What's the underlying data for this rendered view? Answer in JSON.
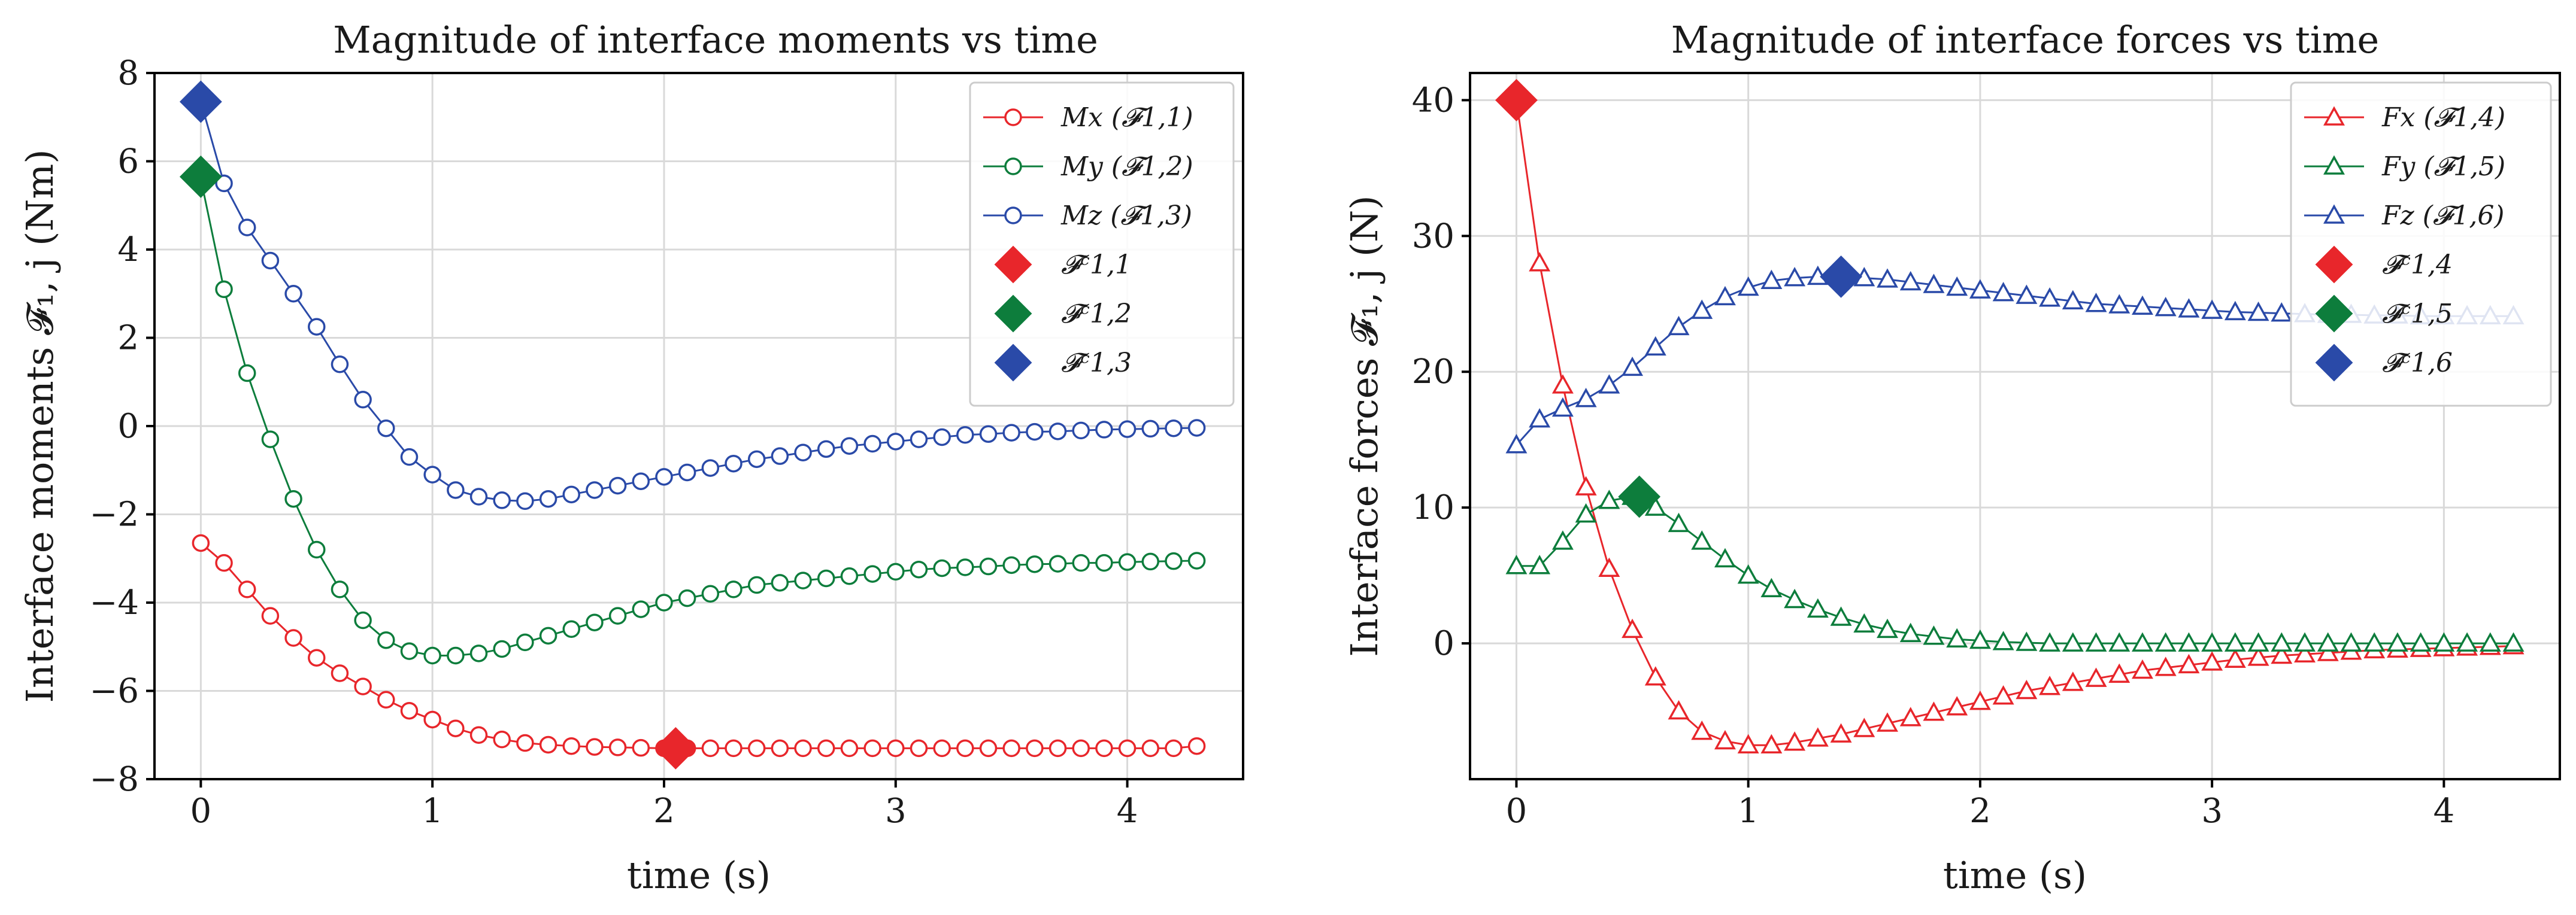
{
  "chart_data": [
    {
      "type": "line",
      "title": "Magnitude of interface moments vs time",
      "xlabel": "time (s)",
      "ylabel": "Interface moments 𝓕₁, j (Nm)",
      "xlim": [
        -0.2,
        4.5
      ],
      "ylim": [
        -8,
        8
      ],
      "xticks": [
        0,
        1,
        2,
        3,
        4
      ],
      "yticks": [
        -8,
        -6,
        -4,
        -2,
        0,
        2,
        4,
        6,
        8
      ],
      "xtick_labels": [
        "0",
        "1",
        "2",
        "3",
        "4"
      ],
      "ytick_labels": [
        "−8",
        "−6",
        "−4",
        "−2",
        "0",
        "2",
        "4",
        "6",
        "8"
      ],
      "grid": true,
      "legend_position": "top-right",
      "marker": "circle",
      "x": [
        0,
        0.1,
        0.2,
        0.3,
        0.4,
        0.5,
        0.6,
        0.7,
        0.8,
        0.9,
        1.0,
        1.1,
        1.2,
        1.3,
        1.4,
        1.5,
        1.6,
        1.7,
        1.8,
        1.9,
        2.0,
        2.1,
        2.2,
        2.3,
        2.4,
        2.5,
        2.6,
        2.7,
        2.8,
        2.9,
        3.0,
        3.1,
        3.2,
        3.3,
        3.4,
        3.5,
        3.6,
        3.7,
        3.8,
        3.9,
        4.0,
        4.1,
        4.2,
        4.3
      ],
      "series": [
        {
          "name": "Mx (𝓕1,1)",
          "color": "#e8262b",
          "values": [
            -2.65,
            -3.1,
            -3.7,
            -4.3,
            -4.8,
            -5.25,
            -5.6,
            -5.9,
            -6.2,
            -6.45,
            -6.65,
            -6.85,
            -7.0,
            -7.1,
            -7.18,
            -7.22,
            -7.25,
            -7.27,
            -7.28,
            -7.29,
            -7.3,
            -7.3,
            -7.3,
            -7.3,
            -7.3,
            -7.3,
            -7.3,
            -7.3,
            -7.3,
            -7.3,
            -7.3,
            -7.3,
            -7.3,
            -7.3,
            -7.3,
            -7.3,
            -7.3,
            -7.3,
            -7.3,
            -7.3,
            -7.3,
            -7.3,
            -7.3,
            -7.25
          ]
        },
        {
          "name": "My (𝓕1,2)",
          "color": "#0d7d3c",
          "values": [
            5.6,
            3.1,
            1.2,
            -0.3,
            -1.65,
            -2.8,
            -3.7,
            -4.4,
            -4.85,
            -5.1,
            -5.2,
            -5.2,
            -5.15,
            -5.05,
            -4.9,
            -4.75,
            -4.6,
            -4.45,
            -4.3,
            -4.15,
            -4.0,
            -3.9,
            -3.8,
            -3.7,
            -3.6,
            -3.55,
            -3.5,
            -3.45,
            -3.4,
            -3.35,
            -3.3,
            -3.25,
            -3.22,
            -3.2,
            -3.18,
            -3.15,
            -3.13,
            -3.12,
            -3.1,
            -3.1,
            -3.08,
            -3.07,
            -3.06,
            -3.05
          ]
        },
        {
          "name": "Mz (𝓕1,3)",
          "color": "#2a4aa8",
          "values": [
            7.35,
            5.5,
            4.5,
            3.75,
            3.0,
            2.25,
            1.4,
            0.6,
            -0.05,
            -0.7,
            -1.1,
            -1.45,
            -1.6,
            -1.68,
            -1.7,
            -1.65,
            -1.55,
            -1.45,
            -1.35,
            -1.25,
            -1.15,
            -1.05,
            -0.95,
            -0.85,
            -0.75,
            -0.68,
            -0.6,
            -0.52,
            -0.45,
            -0.4,
            -0.35,
            -0.3,
            -0.25,
            -0.2,
            -0.18,
            -0.15,
            -0.13,
            -0.12,
            -0.1,
            -0.08,
            -0.07,
            -0.06,
            -0.05,
            -0.04
          ]
        }
      ],
      "highlights": [
        {
          "name": "𝓕ᶜ1,1",
          "color": "#e8262b",
          "x": 2.05,
          "y": -7.3
        },
        {
          "name": "𝓕ᶜ1,2",
          "color": "#0d7d3c",
          "x": 0.0,
          "y": 5.65
        },
        {
          "name": "𝓕ᶜ1,3",
          "color": "#2a4aa8",
          "x": 0.0,
          "y": 7.35
        }
      ],
      "legend_series": [
        "M",
        "x",
        "𝓕",
        "1,1"
      ]
    },
    {
      "type": "line",
      "title": "Magnitude of interface forces vs time",
      "xlabel": "time (s)",
      "ylabel": "Interface forces 𝓕₁, j (N)",
      "xlim": [
        -0.2,
        4.5
      ],
      "ylim": [
        -10,
        42
      ],
      "xticks": [
        0,
        1,
        2,
        3,
        4
      ],
      "yticks": [
        0,
        10,
        20,
        30,
        40
      ],
      "xtick_labels": [
        "0",
        "1",
        "2",
        "3",
        "4"
      ],
      "ytick_labels": [
        "0",
        "10",
        "20",
        "30",
        "40"
      ],
      "grid": true,
      "legend_position": "top-right",
      "marker": "triangle",
      "x": [
        0,
        0.1,
        0.2,
        0.3,
        0.4,
        0.5,
        0.6,
        0.7,
        0.8,
        0.9,
        1.0,
        1.1,
        1.2,
        1.3,
        1.4,
        1.5,
        1.6,
        1.7,
        1.8,
        1.9,
        2.0,
        2.1,
        2.2,
        2.3,
        2.4,
        2.5,
        2.6,
        2.7,
        2.8,
        2.9,
        3.0,
        3.1,
        3.2,
        3.3,
        3.4,
        3.5,
        3.6,
        3.7,
        3.8,
        3.9,
        4.0,
        4.1,
        4.2,
        4.3
      ],
      "series": [
        {
          "name": "Fx (𝓕1,4)",
          "color": "#e8262b",
          "values": [
            40.0,
            28.0,
            19.0,
            11.5,
            5.5,
            1.0,
            -2.5,
            -5.0,
            -6.5,
            -7.2,
            -7.5,
            -7.5,
            -7.3,
            -7.0,
            -6.7,
            -6.3,
            -5.9,
            -5.5,
            -5.1,
            -4.7,
            -4.3,
            -3.9,
            -3.5,
            -3.2,
            -2.9,
            -2.6,
            -2.3,
            -2.0,
            -1.8,
            -1.6,
            -1.4,
            -1.2,
            -1.05,
            -0.9,
            -0.8,
            -0.7,
            -0.6,
            -0.5,
            -0.45,
            -0.4,
            -0.35,
            -0.3,
            -0.25,
            -0.2
          ]
        },
        {
          "name": "Fy (𝓕1,5)",
          "color": "#0d7d3c",
          "values": [
            5.7,
            5.7,
            7.5,
            9.5,
            10.5,
            10.8,
            10.0,
            8.8,
            7.5,
            6.2,
            5.0,
            4.0,
            3.2,
            2.5,
            1.9,
            1.4,
            1.0,
            0.7,
            0.5,
            0.3,
            0.2,
            0.1,
            0.05,
            0.0,
            0.0,
            0.0,
            0.0,
            0.0,
            0.0,
            0.0,
            0.0,
            0.0,
            0.0,
            0.0,
            0.0,
            0.0,
            0.0,
            0.0,
            0.0,
            0.0,
            0.0,
            0.0,
            0.0,
            0.0
          ]
        },
        {
          "name": "Fz (𝓕1,6)",
          "color": "#2a4aa8",
          "values": [
            14.6,
            16.5,
            17.3,
            18.0,
            19.0,
            20.3,
            21.8,
            23.3,
            24.5,
            25.5,
            26.2,
            26.7,
            26.9,
            27.0,
            27.0,
            26.9,
            26.8,
            26.6,
            26.4,
            26.2,
            26.0,
            25.8,
            25.6,
            25.4,
            25.2,
            25.0,
            24.9,
            24.8,
            24.7,
            24.6,
            24.5,
            24.4,
            24.35,
            24.3,
            24.25,
            24.2,
            24.2,
            24.15,
            24.15,
            24.1,
            24.1,
            24.1,
            24.1,
            24.1
          ]
        }
      ],
      "highlights": [
        {
          "name": "𝓕ᶜ1,4",
          "color": "#e8262b",
          "x": 0.0,
          "y": 40.0
        },
        {
          "name": "𝓕ᶜ1,5",
          "color": "#0d7d3c",
          "x": 0.53,
          "y": 10.8
        },
        {
          "name": "𝓕ᶜ1,6",
          "color": "#2a4aa8",
          "x": 1.4,
          "y": 27.0
        }
      ]
    }
  ]
}
